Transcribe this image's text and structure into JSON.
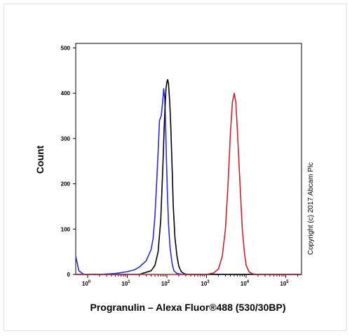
{
  "chart_data": {
    "type": "line",
    "title": "",
    "xlabel": "Progranulin – Alexa Fluor®488 (530/30BP)",
    "ylabel": "Count",
    "x_scale": "log",
    "xlim": [
      0.5,
      250000
    ],
    "ylim": [
      0,
      510
    ],
    "yticks": [
      "0",
      "100",
      "200",
      "300",
      "400",
      "500"
    ],
    "xticks": [
      {
        "base": "10",
        "exp": "0",
        "value": 1
      },
      {
        "base": "10",
        "exp": "1",
        "value": 10
      },
      {
        "base": "10",
        "exp": "2",
        "value": 100
      },
      {
        "base": "10",
        "exp": "3",
        "value": 1000
      },
      {
        "base": "10",
        "exp": "4",
        "value": 10000
      },
      {
        "base": "10",
        "exp": "5",
        "value": 100000
      }
    ],
    "annotation": "Copyright (c) 2017 Abcam Plc",
    "series": [
      {
        "color": "#2a2ad0",
        "points": [
          [
            0.5,
            40
          ],
          [
            0.6,
            8
          ],
          [
            0.8,
            0
          ],
          [
            2,
            0
          ],
          [
            5,
            2
          ],
          [
            10,
            6
          ],
          [
            15,
            10
          ],
          [
            20,
            16
          ],
          [
            30,
            30
          ],
          [
            40,
            55
          ],
          [
            45,
            80
          ],
          [
            50,
            130
          ],
          [
            55,
            200
          ],
          [
            60,
            270
          ],
          [
            65,
            340
          ],
          [
            72,
            350
          ],
          [
            78,
            380
          ],
          [
            83,
            410
          ],
          [
            88,
            390
          ],
          [
            92,
            340
          ],
          [
            97,
            260
          ],
          [
            103,
            180
          ],
          [
            110,
            110
          ],
          [
            120,
            60
          ],
          [
            135,
            25
          ],
          [
            150,
            8
          ],
          [
            180,
            2
          ],
          [
            250,
            0
          ],
          [
            250000,
            0
          ]
        ]
      },
      {
        "color": "#000000",
        "points": [
          [
            0.5,
            0
          ],
          [
            20,
            0
          ],
          [
            40,
            8
          ],
          [
            50,
            20
          ],
          [
            60,
            50
          ],
          [
            70,
            120
          ],
          [
            80,
            250
          ],
          [
            85,
            320
          ],
          [
            90,
            370
          ],
          [
            95,
            410
          ],
          [
            100,
            425
          ],
          [
            105,
            430
          ],
          [
            110,
            420
          ],
          [
            118,
            380
          ],
          [
            125,
            330
          ],
          [
            135,
            240
          ],
          [
            145,
            150
          ],
          [
            160,
            80
          ],
          [
            180,
            40
          ],
          [
            200,
            18
          ],
          [
            230,
            6
          ],
          [
            280,
            1
          ],
          [
            350,
            0
          ],
          [
            250000,
            0
          ]
        ]
      },
      {
        "color": "#c8202e",
        "points": [
          [
            0.5,
            0
          ],
          [
            1000,
            0
          ],
          [
            1500,
            3
          ],
          [
            2000,
            12
          ],
          [
            2500,
            40
          ],
          [
            3000,
            100
          ],
          [
            3500,
            200
          ],
          [
            4000,
            310
          ],
          [
            4500,
            380
          ],
          [
            5000,
            400
          ],
          [
            5500,
            380
          ],
          [
            6000,
            320
          ],
          [
            7000,
            200
          ],
          [
            8000,
            100
          ],
          [
            9000,
            50
          ],
          [
            10000,
            20
          ],
          [
            12000,
            5
          ],
          [
            15000,
            1
          ],
          [
            20000,
            0
          ],
          [
            250000,
            0
          ]
        ]
      }
    ]
  }
}
